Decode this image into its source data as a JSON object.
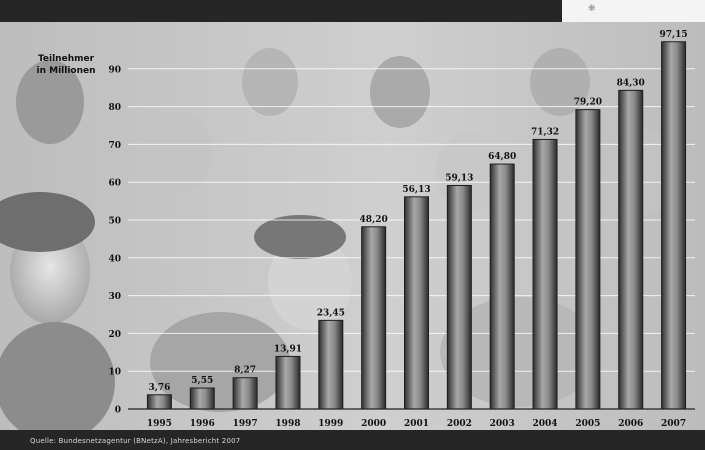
{
  "header": {
    "logo_text": "❋"
  },
  "footer": {
    "source": "Quelle: Bundesnetzagentur (BNetzA), Jahresbericht 2007"
  },
  "colors": {
    "bar_dark": "#3a3a3a",
    "bar_light": "#9a9a9a",
    "band": "#262626"
  },
  "chart_data": {
    "type": "bar",
    "title": "",
    "ylabel": "Teilnehmer in Millionen",
    "ylabel_lines": [
      "Teilnehmer",
      "in Millionen"
    ],
    "xlabel": "",
    "ylim": [
      0,
      100
    ],
    "yticks": [
      0,
      10,
      20,
      30,
      40,
      50,
      60,
      70,
      80,
      90
    ],
    "grid": true,
    "categories": [
      "1995",
      "1996",
      "1997",
      "1998",
      "1999",
      "2000",
      "2001",
      "2002",
      "2003",
      "2004",
      "2005",
      "2006",
      "2007"
    ],
    "values": [
      3.76,
      5.55,
      8.27,
      13.91,
      23.45,
      48.2,
      56.13,
      59.13,
      64.8,
      71.32,
      79.2,
      84.3,
      97.15
    ],
    "value_labels": [
      "3,76",
      "5,55",
      "8,27",
      "13,91",
      "23,45",
      "48,20",
      "56,13",
      "59,13",
      "64,80",
      "71,32",
      "79,20",
      "84,30",
      "97,15"
    ]
  }
}
